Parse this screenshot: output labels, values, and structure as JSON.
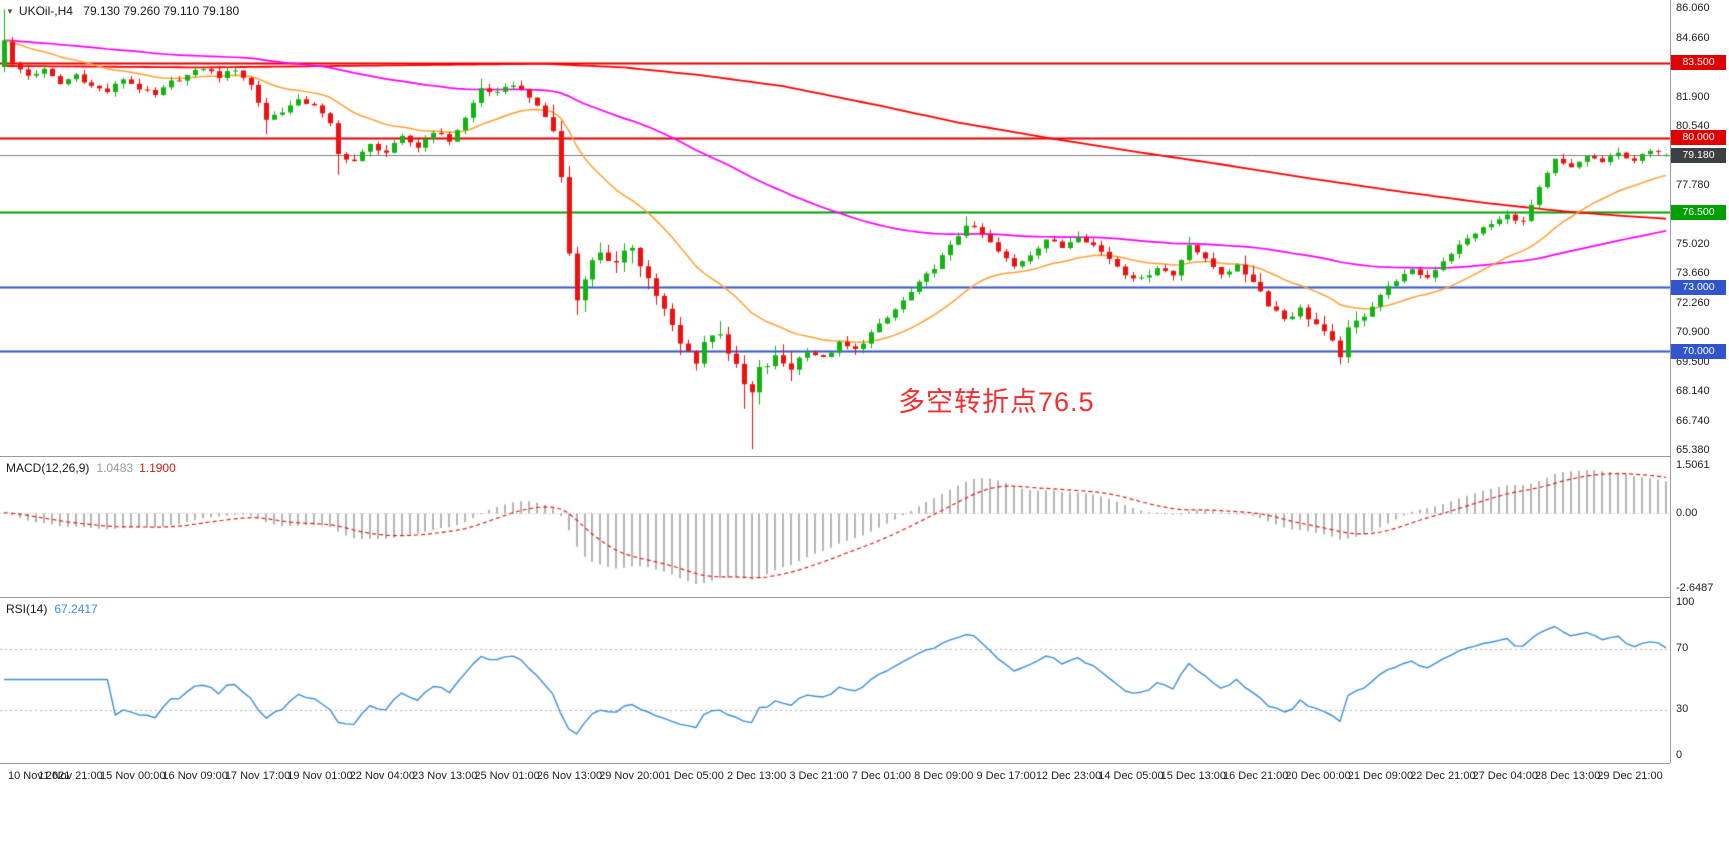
{
  "window": {
    "app": "trading-chart-terminal"
  },
  "main_chart": {
    "symbol_label": "UKOil-,H4",
    "ohlc_label": "79.130 79.260 79.110 79.180",
    "annotation": "多空转折点76.5",
    "dropdown_icon": "▼",
    "y_ticks": [
      "86.060",
      "84.660",
      "81.900",
      "80.540",
      "77.780",
      "75.020",
      "73.660",
      "72.260",
      "70.900",
      "69.500",
      "68.140",
      "66.740",
      "65.380"
    ],
    "levels": [
      {
        "value": 83.5,
        "label": "83.500",
        "color": "#e00000",
        "line_width": 2
      },
      {
        "value": 80.0,
        "label": "80.000",
        "color": "#e00000",
        "line_width": 2
      },
      {
        "value": 79.18,
        "label": "79.180",
        "color": "#808080",
        "badge_bg": "#3c4043",
        "line_width": 1,
        "is_bid": true
      },
      {
        "value": 76.5,
        "label": "76.500",
        "color": "#00a000",
        "line_width": 2
      },
      {
        "value": 73.0,
        "label": "73.000",
        "color": "#3355cc",
        "line_width": 2
      },
      {
        "value": 70.0,
        "label": "70.000",
        "color": "#3355cc",
        "line_width": 2
      }
    ]
  },
  "macd_panel": {
    "label": "MACD(12,26,9)",
    "value_main": "1.0483",
    "value_signal": "1.1900",
    "y_ticks": [
      "1.5061",
      "0.00",
      "-2.6487"
    ]
  },
  "rsi_panel": {
    "label": "RSI(14)",
    "value": "67.2417",
    "y_ticks": [
      "100",
      "70",
      "30",
      "0"
    ]
  },
  "time_axis": [
    "10 Nov 2021",
    "11 Nov 21:00",
    "15 Nov 00:00",
    "16 Nov 09:00",
    "17 Nov 17:00",
    "19 Nov 01:00",
    "22 Nov 04:00",
    "23 Nov 13:00",
    "25 Nov 01:00",
    "26 Nov 13:00",
    "29 Nov 20:00",
    "1 Dec 05:00",
    "2 Dec 13:00",
    "3 Dec 21:00",
    "7 Dec 01:00",
    "8 Dec 09:00",
    "9 Dec 17:00",
    "12 Dec 23:00",
    "14 Dec 05:00",
    "15 Dec 13:00",
    "16 Dec 21:00",
    "20 Dec 00:00",
    "21 Dec 09:00",
    "22 Dec 21:00",
    "27 Dec 04:00",
    "28 Dec 13:00",
    "29 Dec 21:00"
  ],
  "chart_data": {
    "type": "candlestick+indicators",
    "symbol": "UKOil-",
    "timeframe": "H4",
    "ylim": [
      65.38,
      86.06
    ],
    "num_candles": 210,
    "last_ohlc": {
      "open": 79.13,
      "high": 79.26,
      "low": 79.11,
      "close": 79.18
    },
    "first_candle": [
      83.3,
      86.0,
      83.05,
      84.55
    ],
    "close_waypoints": [
      [
        0,
        84.55
      ],
      [
        1,
        83.45
      ],
      [
        3,
        82.9
      ],
      [
        5,
        83.15
      ],
      [
        7,
        82.5
      ],
      [
        9,
        82.95
      ],
      [
        11,
        82.4
      ],
      [
        13,
        82.15
      ],
      [
        15,
        82.75
      ],
      [
        17,
        82.3
      ],
      [
        19,
        81.95
      ],
      [
        21,
        82.6
      ],
      [
        23,
        82.9
      ],
      [
        25,
        83.25
      ],
      [
        27,
        82.85
      ],
      [
        29,
        83.2
      ],
      [
        31,
        82.45
      ],
      [
        33,
        80.85
      ],
      [
        35,
        81.25
      ],
      [
        37,
        81.7
      ],
      [
        39,
        81.55
      ],
      [
        41,
        80.6
      ],
      [
        42,
        79.2
      ],
      [
        44,
        78.9
      ],
      [
        46,
        79.65
      ],
      [
        48,
        79.3
      ],
      [
        50,
        80.0
      ],
      [
        52,
        79.55
      ],
      [
        54,
        80.3
      ],
      [
        56,
        79.85
      ],
      [
        58,
        80.9
      ],
      [
        60,
        82.3
      ],
      [
        62,
        82.05
      ],
      [
        64,
        82.5
      ],
      [
        66,
        81.95
      ],
      [
        67,
        81.4
      ],
      [
        68,
        80.95
      ],
      [
        69,
        80.35
      ],
      [
        70,
        78.1
      ],
      [
        71,
        74.6
      ],
      [
        72,
        72.4
      ],
      [
        73,
        73.6
      ],
      [
        75,
        74.7
      ],
      [
        77,
        74.0
      ],
      [
        79,
        74.95
      ],
      [
        81,
        73.4
      ],
      [
        83,
        71.9
      ],
      [
        85,
        70.3
      ],
      [
        87,
        69.6
      ],
      [
        88,
        70.45
      ],
      [
        90,
        70.95
      ],
      [
        91,
        70.0
      ],
      [
        93,
        68.4
      ],
      [
        94,
        68.0
      ],
      [
        95,
        69.1
      ],
      [
        97,
        69.65
      ],
      [
        99,
        69.25
      ],
      [
        101,
        70.05
      ],
      [
        103,
        69.65
      ],
      [
        105,
        70.35
      ],
      [
        107,
        70.05
      ],
      [
        109,
        70.85
      ],
      [
        111,
        71.55
      ],
      [
        113,
        72.35
      ],
      [
        115,
        73.15
      ],
      [
        117,
        73.95
      ],
      [
        119,
        74.9
      ],
      [
        121,
        75.95
      ],
      [
        123,
        75.45
      ],
      [
        125,
        74.65
      ],
      [
        127,
        73.95
      ],
      [
        129,
        74.55
      ],
      [
        131,
        75.25
      ],
      [
        133,
        74.85
      ],
      [
        135,
        75.45
      ],
      [
        137,
        74.95
      ],
      [
        139,
        74.35
      ],
      [
        141,
        73.65
      ],
      [
        143,
        73.35
      ],
      [
        145,
        73.95
      ],
      [
        147,
        73.55
      ],
      [
        149,
        75.05
      ],
      [
        151,
        74.25
      ],
      [
        153,
        73.65
      ],
      [
        155,
        73.95
      ],
      [
        157,
        73.35
      ],
      [
        159,
        72.25
      ],
      [
        161,
        71.55
      ],
      [
        163,
        71.95
      ],
      [
        165,
        71.25
      ],
      [
        167,
        70.35
      ],
      [
        168,
        69.85
      ],
      [
        169,
        70.95
      ],
      [
        171,
        71.75
      ],
      [
        173,
        72.65
      ],
      [
        175,
        73.35
      ],
      [
        177,
        73.75
      ],
      [
        179,
        73.45
      ],
      [
        181,
        74.25
      ],
      [
        183,
        74.95
      ],
      [
        185,
        75.55
      ],
      [
        187,
        75.95
      ],
      [
        189,
        76.35
      ],
      [
        191,
        76.05
      ],
      [
        193,
        77.6
      ],
      [
        195,
        78.95
      ],
      [
        197,
        78.55
      ],
      [
        199,
        79.15
      ],
      [
        201,
        78.85
      ],
      [
        203,
        79.25
      ],
      [
        205,
        78.95
      ],
      [
        207,
        79.35
      ],
      [
        209,
        79.18
      ]
    ],
    "volatility_zones": [
      [
        0,
        69,
        0.9
      ],
      [
        69,
        101,
        2.2
      ],
      [
        101,
        156,
        1.0
      ],
      [
        156,
        173,
        1.6
      ],
      [
        173,
        210,
        0.85
      ]
    ],
    "wick_overrides": [
      {
        "i": 0,
        "high": 86.0
      },
      {
        "i": 33,
        "low": 80.15
      },
      {
        "i": 42,
        "low": 78.25
      },
      {
        "i": 60,
        "high": 82.75
      },
      {
        "i": 72,
        "low": 71.7
      },
      {
        "i": 93,
        "low": 67.3
      },
      {
        "i": 94,
        "low": 65.42
      },
      {
        "i": 121,
        "high": 76.32
      },
      {
        "i": 149,
        "high": 75.35
      },
      {
        "i": 168,
        "low": 69.38
      }
    ],
    "moving_averages": {
      "fast_period": 21,
      "mid_period": 100,
      "slow_waypoints": [
        [
          0,
          83.35
        ],
        [
          25,
          83.28
        ],
        [
          50,
          83.38
        ],
        [
          68,
          83.45
        ],
        [
          78,
          83.28
        ],
        [
          88,
          82.9
        ],
        [
          98,
          82.4
        ],
        [
          110,
          81.5
        ],
        [
          120,
          80.7
        ],
        [
          131,
          80.0
        ],
        [
          142,
          79.35
        ],
        [
          153,
          78.75
        ],
        [
          164,
          78.1
        ],
        [
          175,
          77.5
        ],
        [
          186,
          76.95
        ],
        [
          196,
          76.55
        ],
        [
          203,
          76.35
        ],
        [
          209,
          76.2
        ]
      ]
    },
    "macd": {
      "fast": 12,
      "slow": 26,
      "signal": 9,
      "current_main": 1.0483,
      "current_signal": 1.19,
      "axis_range": [
        -2.6487,
        1.5061
      ]
    },
    "rsi": {
      "period": 14,
      "current": 67.2417,
      "levels": [
        70,
        30
      ],
      "axis_range": [
        0,
        100
      ]
    }
  },
  "colors": {
    "background": "#ffffff",
    "panel_border": "#9a9a9a",
    "text": "#1a1a1a",
    "axis_text": "#222222",
    "candle_up": "#14b314",
    "candle_down": "#ef1010",
    "ma_fast_orange": "#ffa033",
    "ma_mid_magenta": "#ff00ff",
    "ma_slow_red": "#ff0000",
    "macd_histogram": "#b5b5b5",
    "macd_signal": "#e02020",
    "macd_zero_line": "#c0c0c0",
    "rsi_line": "#3e8ede",
    "rsi_level_line": "#b9b9b9",
    "bid_line": "#808080",
    "annotation_red": "#f23030"
  }
}
